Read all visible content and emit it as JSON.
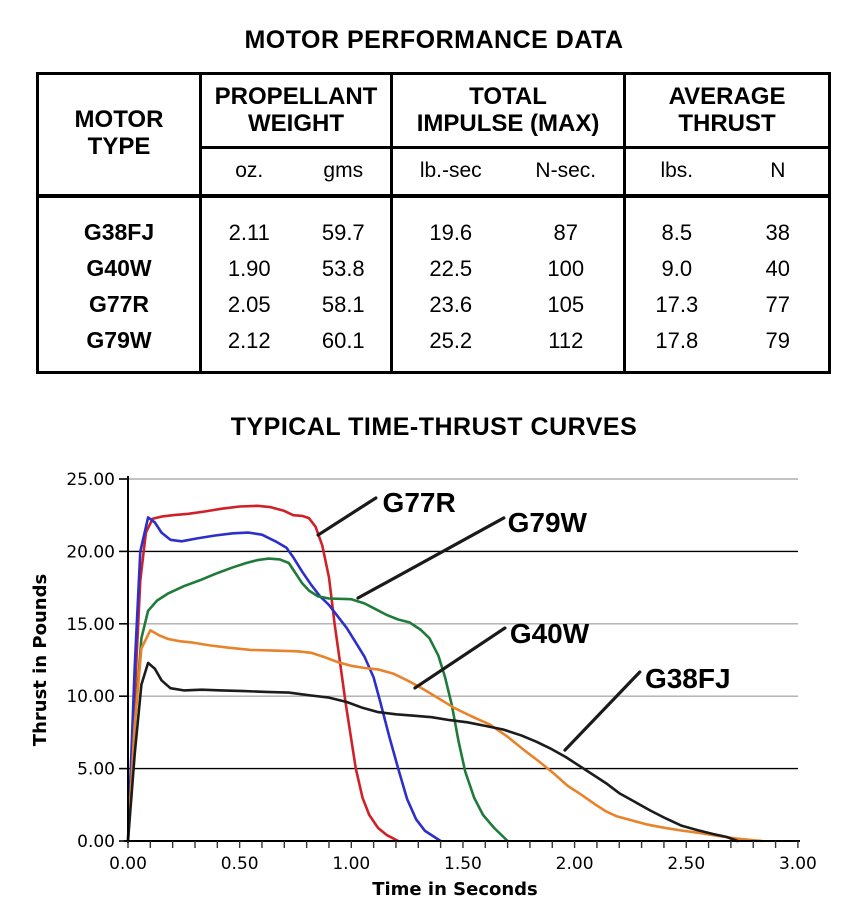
{
  "table": {
    "title": "MOTOR PERFORMANCE DATA",
    "header_groups": [
      {
        "lines": [
          "MOTOR",
          "TYPE"
        ],
        "sub": []
      },
      {
        "lines": [
          "PROPELLANT",
          "WEIGHT"
        ],
        "sub": [
          "oz.",
          "gms"
        ]
      },
      {
        "lines": [
          "TOTAL",
          "IMPULSE (MAX)"
        ],
        "sub": [
          "lb.-sec",
          "N-sec."
        ]
      },
      {
        "lines": [
          "AVERAGE",
          "THRUST"
        ],
        "sub": [
          "lbs.",
          "N"
        ]
      }
    ],
    "rows": [
      {
        "motor": "G38FJ",
        "values": [
          "2.11",
          "59.7",
          "19.6",
          "87",
          "8.5",
          "38"
        ]
      },
      {
        "motor": "G40W",
        "values": [
          "1.90",
          "53.8",
          "22.5",
          "100",
          "9.0",
          "40"
        ]
      },
      {
        "motor": "G77R",
        "values": [
          "2.05",
          "58.1",
          "23.6",
          "105",
          "17.3",
          "77"
        ]
      },
      {
        "motor": "G79W",
        "values": [
          "2.12",
          "60.1",
          "25.2",
          "112",
          "17.8",
          "79"
        ]
      }
    ]
  },
  "chart_data": {
    "type": "line",
    "title": "TYPICAL TIME-THRUST CURVES",
    "xlabel": "Time in Seconds",
    "ylabel": "Thrust in Pounds",
    "xlim": [
      0,
      3
    ],
    "ylim": [
      0,
      25
    ],
    "x_tick_labels": [
      "0.00",
      "0.50",
      "1.00",
      "1.50",
      "2.00",
      "2.50",
      "3.00"
    ],
    "y_tick_labels": [
      "0.00",
      "5.00",
      "10.00",
      "15.00",
      "20.00",
      "25.00"
    ],
    "x_minor_tick_step": 0.1,
    "grid": "horizontal",
    "y_gridlines_dark": [
      5,
      20
    ],
    "gridline_gray": "#adadad",
    "series": [
      {
        "id": "g77r",
        "label": "G77R",
        "color": "#cf2128",
        "points": [
          [
            0,
            0
          ],
          [
            0.03,
            10.0
          ],
          [
            0.055,
            18.0
          ],
          [
            0.08,
            21.3
          ],
          [
            0.11,
            22.25
          ],
          [
            0.15,
            22.4
          ],
          [
            0.2,
            22.5
          ],
          [
            0.27,
            22.6
          ],
          [
            0.34,
            22.75
          ],
          [
            0.42,
            22.95
          ],
          [
            0.5,
            23.1
          ],
          [
            0.58,
            23.15
          ],
          [
            0.64,
            23.05
          ],
          [
            0.7,
            22.8
          ],
          [
            0.74,
            22.5
          ],
          [
            0.78,
            22.45
          ],
          [
            0.81,
            22.3
          ],
          [
            0.84,
            21.7
          ],
          [
            0.87,
            20.4
          ],
          [
            0.9,
            18.2
          ],
          [
            0.925,
            15.0
          ],
          [
            0.95,
            12.3
          ],
          [
            0.975,
            9.5
          ],
          [
            1.0,
            7.0
          ],
          [
            1.02,
            5.0
          ],
          [
            1.05,
            3.0
          ],
          [
            1.08,
            1.8
          ],
          [
            1.12,
            0.9
          ],
          [
            1.16,
            0.4
          ],
          [
            1.21,
            0
          ]
        ]
      },
      {
        "id": "blue-unlabeled",
        "label": null,
        "color": "#2c2fc9",
        "points": [
          [
            0,
            0
          ],
          [
            0.03,
            12.0
          ],
          [
            0.055,
            20.0
          ],
          [
            0.09,
            22.35
          ],
          [
            0.12,
            22.0
          ],
          [
            0.15,
            21.3
          ],
          [
            0.19,
            20.8
          ],
          [
            0.24,
            20.7
          ],
          [
            0.31,
            20.9
          ],
          [
            0.39,
            21.1
          ],
          [
            0.47,
            21.25
          ],
          [
            0.54,
            21.3
          ],
          [
            0.6,
            21.15
          ],
          [
            0.66,
            20.7
          ],
          [
            0.71,
            20.25
          ],
          [
            0.74,
            19.6
          ],
          [
            0.78,
            18.6
          ],
          [
            0.82,
            17.7
          ],
          [
            0.86,
            16.9
          ],
          [
            0.9,
            16.3
          ],
          [
            0.94,
            15.5
          ],
          [
            0.98,
            14.7
          ],
          [
            1.02,
            13.7
          ],
          [
            1.06,
            12.7
          ],
          [
            1.1,
            11.3
          ],
          [
            1.13,
            9.6
          ],
          [
            1.17,
            7.2
          ],
          [
            1.21,
            5.0
          ],
          [
            1.25,
            2.9
          ],
          [
            1.29,
            1.5
          ],
          [
            1.33,
            0.7
          ],
          [
            1.4,
            0
          ]
        ]
      },
      {
        "id": "g79w",
        "label": "G79W",
        "color": "#1e7b39",
        "points": [
          [
            0,
            0
          ],
          [
            0.03,
            8.0
          ],
          [
            0.06,
            14.0
          ],
          [
            0.09,
            15.9
          ],
          [
            0.13,
            16.6
          ],
          [
            0.18,
            17.1
          ],
          [
            0.25,
            17.6
          ],
          [
            0.32,
            18.0
          ],
          [
            0.4,
            18.5
          ],
          [
            0.47,
            18.9
          ],
          [
            0.53,
            19.2
          ],
          [
            0.58,
            19.4
          ],
          [
            0.63,
            19.5
          ],
          [
            0.68,
            19.45
          ],
          [
            0.72,
            19.2
          ],
          [
            0.75,
            18.5
          ],
          [
            0.78,
            17.8
          ],
          [
            0.81,
            17.3
          ],
          [
            0.85,
            16.9
          ],
          [
            0.9,
            16.75
          ],
          [
            1.0,
            16.7
          ],
          [
            1.06,
            16.4
          ],
          [
            1.11,
            16.0
          ],
          [
            1.16,
            15.6
          ],
          [
            1.21,
            15.3
          ],
          [
            1.26,
            15.1
          ],
          [
            1.31,
            14.6
          ],
          [
            1.35,
            14.0
          ],
          [
            1.39,
            12.8
          ],
          [
            1.42,
            11.3
          ],
          [
            1.45,
            9.4
          ],
          [
            1.48,
            6.9
          ],
          [
            1.51,
            4.8
          ],
          [
            1.55,
            3.0
          ],
          [
            1.59,
            1.8
          ],
          [
            1.64,
            0.9
          ],
          [
            1.7,
            0
          ]
        ]
      },
      {
        "id": "g40w",
        "label": "G40W",
        "color": "#e8832c",
        "points": [
          [
            0,
            0
          ],
          [
            0.03,
            8.0
          ],
          [
            0.06,
            13.3
          ],
          [
            0.1,
            14.55
          ],
          [
            0.14,
            14.2
          ],
          [
            0.18,
            13.95
          ],
          [
            0.23,
            13.8
          ],
          [
            0.29,
            13.7
          ],
          [
            0.37,
            13.5
          ],
          [
            0.45,
            13.35
          ],
          [
            0.55,
            13.2
          ],
          [
            0.65,
            13.15
          ],
          [
            0.76,
            13.1
          ],
          [
            0.82,
            13.0
          ],
          [
            0.88,
            12.7
          ],
          [
            0.94,
            12.35
          ],
          [
            1.0,
            12.1
          ],
          [
            1.06,
            11.95
          ],
          [
            1.12,
            11.85
          ],
          [
            1.19,
            11.55
          ],
          [
            1.25,
            11.1
          ],
          [
            1.31,
            10.6
          ],
          [
            1.38,
            9.95
          ],
          [
            1.46,
            9.2
          ],
          [
            1.54,
            8.6
          ],
          [
            1.62,
            8.05
          ],
          [
            1.7,
            7.2
          ],
          [
            1.78,
            6.2
          ],
          [
            1.84,
            5.5
          ],
          [
            1.9,
            4.75
          ],
          [
            1.97,
            3.8
          ],
          [
            2.03,
            3.2
          ],
          [
            2.09,
            2.55
          ],
          [
            2.14,
            2.05
          ],
          [
            2.19,
            1.7
          ],
          [
            2.25,
            1.45
          ],
          [
            2.32,
            1.15
          ],
          [
            2.4,
            0.92
          ],
          [
            2.48,
            0.72
          ],
          [
            2.56,
            0.55
          ],
          [
            2.64,
            0.35
          ],
          [
            2.72,
            0.18
          ],
          [
            2.78,
            0.08
          ],
          [
            2.84,
            0
          ]
        ]
      },
      {
        "id": "g38fj",
        "label": "G38FJ",
        "color": "#1c1c1c",
        "points": [
          [
            0,
            0
          ],
          [
            0.03,
            6.0
          ],
          [
            0.06,
            10.8
          ],
          [
            0.09,
            12.3
          ],
          [
            0.12,
            11.9
          ],
          [
            0.15,
            11.1
          ],
          [
            0.19,
            10.55
          ],
          [
            0.25,
            10.4
          ],
          [
            0.33,
            10.45
          ],
          [
            0.42,
            10.4
          ],
          [
            0.52,
            10.35
          ],
          [
            0.62,
            10.3
          ],
          [
            0.72,
            10.25
          ],
          [
            0.82,
            10.05
          ],
          [
            0.9,
            9.9
          ],
          [
            0.98,
            9.6
          ],
          [
            1.05,
            9.2
          ],
          [
            1.12,
            8.9
          ],
          [
            1.2,
            8.75
          ],
          [
            1.28,
            8.65
          ],
          [
            1.36,
            8.55
          ],
          [
            1.44,
            8.35
          ],
          [
            1.52,
            8.2
          ],
          [
            1.6,
            7.95
          ],
          [
            1.68,
            7.7
          ],
          [
            1.76,
            7.3
          ],
          [
            1.83,
            6.85
          ],
          [
            1.89,
            6.4
          ],
          [
            1.96,
            5.8
          ],
          [
            2.02,
            5.2
          ],
          [
            2.08,
            4.6
          ],
          [
            2.14,
            4.0
          ],
          [
            2.2,
            3.3
          ],
          [
            2.27,
            2.7
          ],
          [
            2.34,
            2.1
          ],
          [
            2.41,
            1.55
          ],
          [
            2.48,
            1.05
          ],
          [
            2.55,
            0.75
          ],
          [
            2.62,
            0.48
          ],
          [
            2.68,
            0.28
          ],
          [
            2.73,
            0
          ]
        ]
      }
    ],
    "annotations": [
      {
        "label": "G77R",
        "target": "g77r",
        "text_at": [
          1.14,
          22.72
        ],
        "leader": [
          [
            0.851,
            21.13
          ],
          [
            1.11,
            23.69
          ]
        ]
      },
      {
        "label": "G79W",
        "target": "g79w",
        "text_at": [
          1.7,
          21.34
        ],
        "leader": [
          [
            1.03,
            16.78
          ],
          [
            1.683,
            22.31
          ]
        ]
      },
      {
        "label": "G40W",
        "target": "g40w",
        "text_at": [
          1.71,
          13.67
        ],
        "leader": [
          [
            1.285,
            10.57
          ],
          [
            1.688,
            14.71
          ]
        ]
      },
      {
        "label": "G38FJ",
        "target": "g38fj",
        "text_at": [
          2.315,
          10.57
        ],
        "leader": [
          [
            1.957,
            6.28
          ],
          [
            2.292,
            11.67
          ]
        ]
      }
    ]
  }
}
